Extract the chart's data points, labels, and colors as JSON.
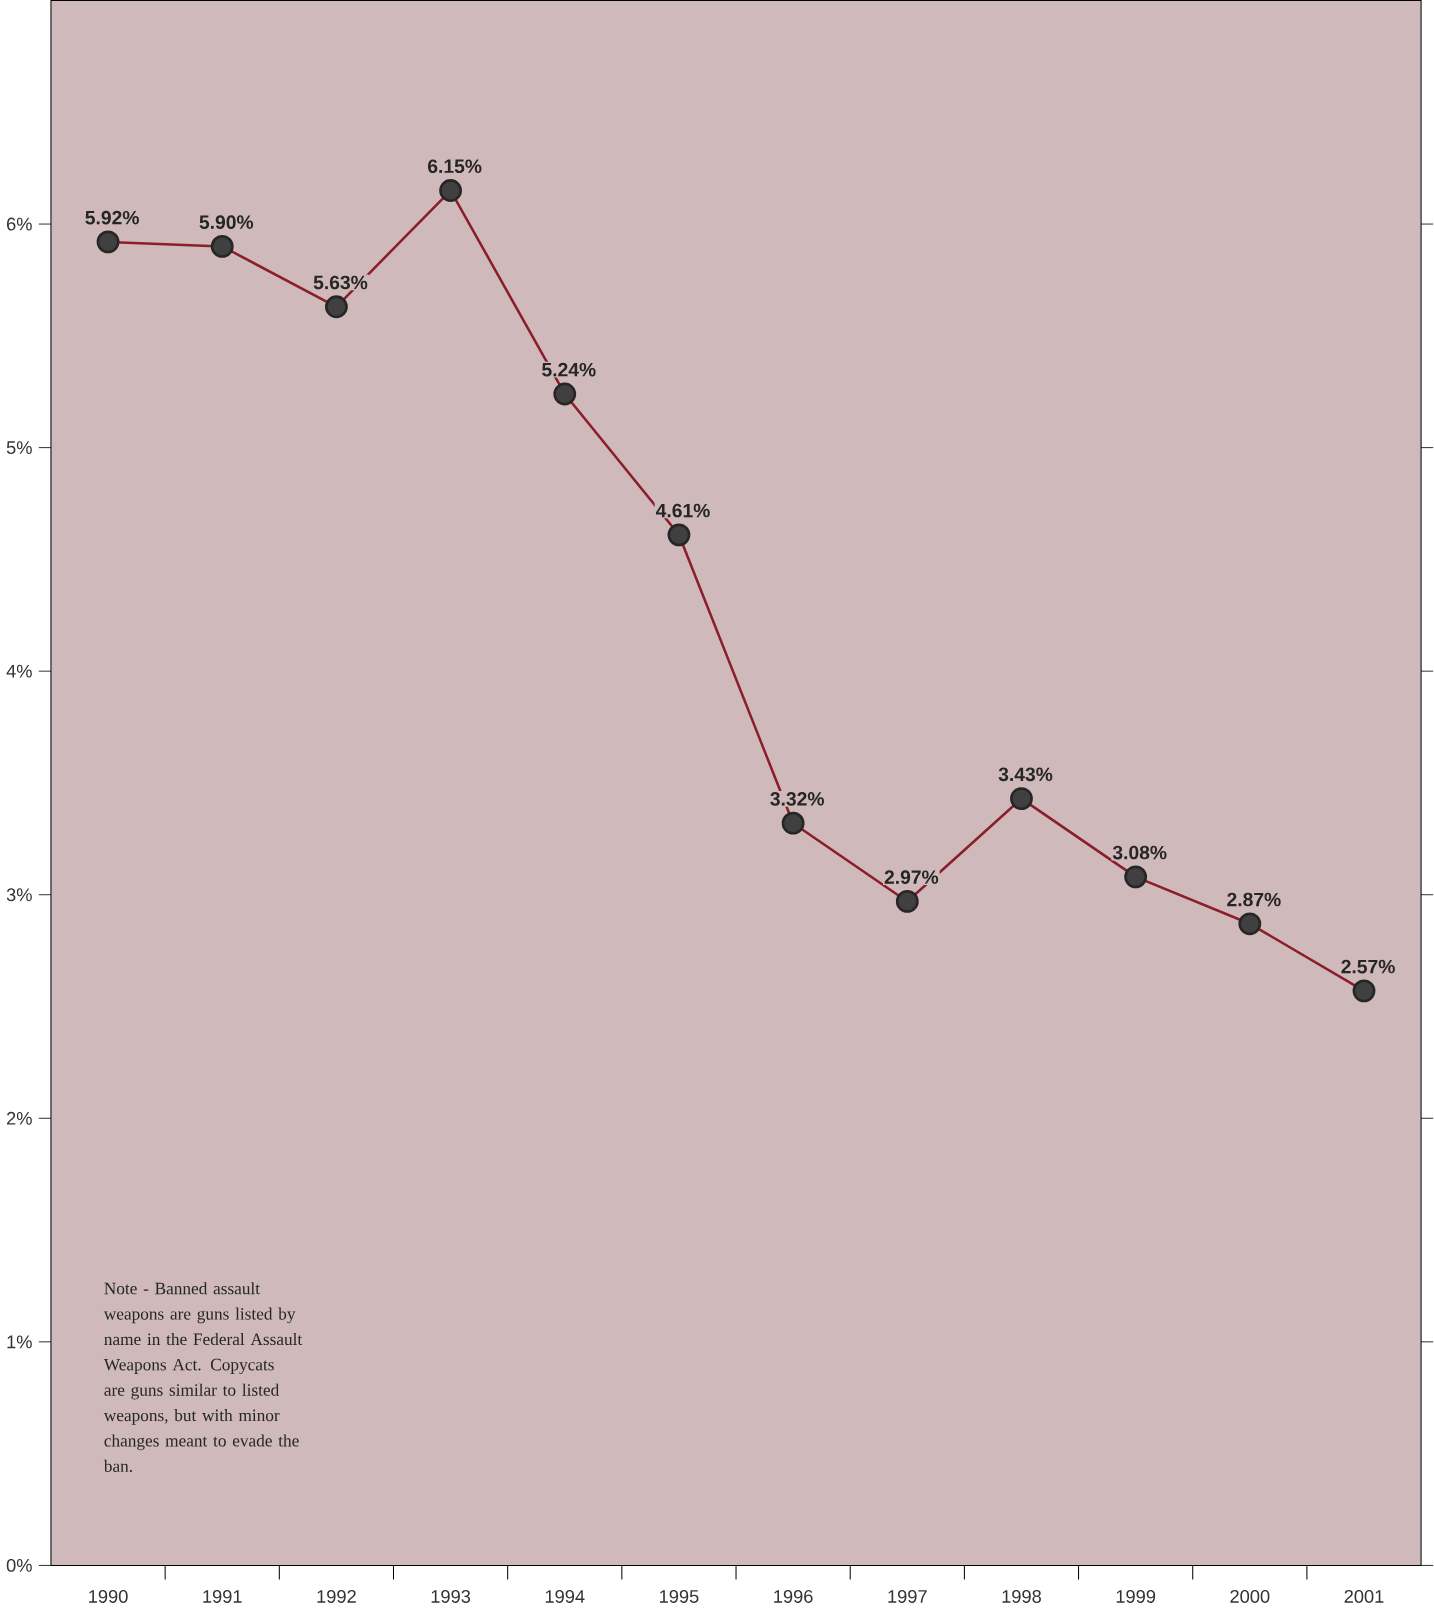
{
  "chart_data": {
    "type": "line",
    "categories": [
      "1990",
      "1991",
      "1992",
      "1993",
      "1994",
      "1995",
      "1996",
      "1997",
      "1998",
      "1999",
      "2000",
      "2001"
    ],
    "series": [
      {
        "color": "#8b1e2b",
        "values": [
          5.92,
          5.9,
          5.63,
          6.15,
          5.24,
          4.61,
          3.32,
          2.97,
          3.43,
          3.08,
          2.87,
          2.57
        ],
        "value_labels": [
          "5.92%",
          "5.90%",
          "5.63%",
          "6.15%",
          "5.24%",
          "4.61%",
          "3.32%",
          "2.97%",
          "3.43%",
          "3.08%",
          "2.87%",
          "2.57%"
        ]
      }
    ],
    "ylim": [
      0,
      7
    ],
    "yticks": [
      {
        "value": 0,
        "label": "0%"
      },
      {
        "value": 1,
        "label": "1%"
      },
      {
        "value": 2,
        "label": "2%"
      },
      {
        "value": 3,
        "label": "3%"
      },
      {
        "value": 4,
        "label": "4%"
      },
      {
        "value": 5,
        "label": "5%"
      },
      {
        "value": 6,
        "label": "6%"
      }
    ],
    "marker": "circle",
    "line_style": "solid",
    "grid": false,
    "annotations": [
      "Note - Banned assault weapons are guns listed by name in the Federal Assault Weapons Act. Copycats are guns similar to listed weapons, but with minor changes meant to evade the ban."
    ]
  }
}
